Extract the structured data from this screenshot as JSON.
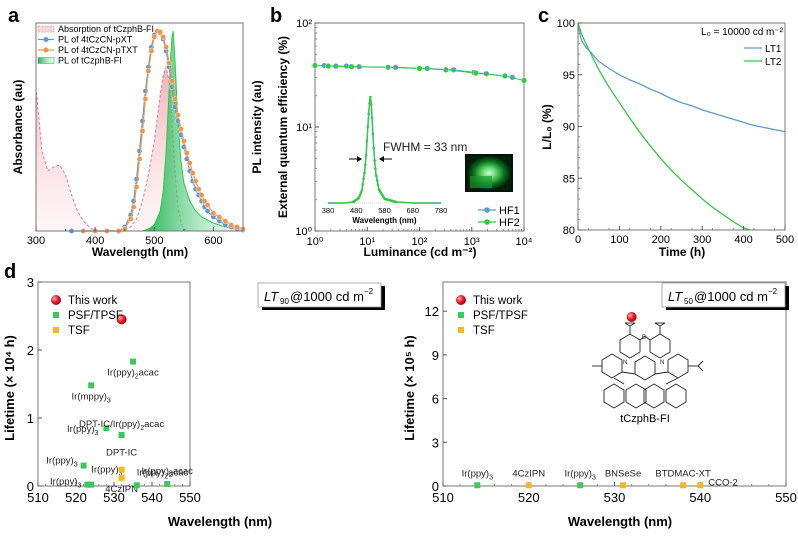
{
  "chart_data": [
    {
      "panel": "a",
      "type": "line",
      "xlabel": "Wavelength (nm)",
      "ylabel_left": "Absorbance (au)",
      "ylabel_right": "PL intensity (au)",
      "xlim": [
        300,
        650
      ],
      "ylim": [
        0,
        1
      ],
      "xticks": [
        "300",
        "400",
        "500",
        "600"
      ],
      "legend": "top-left",
      "series": [
        {
          "name": "Absorption of tCzphB-FI",
          "style": "dashed-fill",
          "color": "#e8a0a8",
          "x": [
            300,
            310,
            320,
            330,
            340,
            350,
            360,
            370,
            380,
            390,
            400,
            420,
            440,
            460,
            470,
            480,
            490,
            500,
            510,
            515,
            520,
            525,
            530,
            535,
            540,
            545,
            550,
            560,
            600,
            650
          ],
          "y": [
            0.72,
            0.4,
            0.3,
            0.32,
            0.33,
            0.28,
            0.18,
            0.1,
            0.05,
            0.02,
            0.0,
            0.0,
            0.0,
            0.02,
            0.06,
            0.15,
            0.28,
            0.45,
            0.68,
            0.78,
            0.82,
            0.75,
            0.55,
            0.3,
            0.12,
            0.04,
            0.01,
            0.0,
            0.0,
            0.0
          ]
        },
        {
          "name": "PL of 4tCzCN-pXT",
          "style": "line-circle",
          "color": "#5b9bd5",
          "x": [
            360,
            380,
            400,
            420,
            440,
            450,
            460,
            465,
            470,
            475,
            480,
            485,
            490,
            495,
            500,
            505,
            510,
            515,
            520,
            525,
            530,
            535,
            540,
            545,
            550,
            555,
            560,
            565,
            570,
            575,
            580,
            585,
            590,
            600,
            610,
            620,
            630,
            640,
            650
          ],
          "y": [
            0.0,
            0.0,
            0.0,
            0.0,
            0.0,
            0.02,
            0.08,
            0.15,
            0.26,
            0.4,
            0.55,
            0.7,
            0.82,
            0.92,
            0.98,
            1.0,
            0.99,
            0.96,
            0.9,
            0.82,
            0.72,
            0.62,
            0.55,
            0.48,
            0.42,
            0.36,
            0.3,
            0.25,
            0.21,
            0.18,
            0.15,
            0.12,
            0.1,
            0.07,
            0.05,
            0.03,
            0.02,
            0.01,
            0.005
          ]
        },
        {
          "name": "PL of 4tCzCN-pTXT",
          "style": "line-circle",
          "color": "#f0954a",
          "x": [
            380,
            400,
            420,
            440,
            450,
            460,
            465,
            470,
            475,
            480,
            485,
            490,
            495,
            500,
            505,
            510,
            515,
            520,
            525,
            530,
            535,
            540,
            545,
            550,
            555,
            560,
            565,
            570,
            575,
            580,
            585,
            590,
            600,
            610,
            620,
            630,
            640,
            650
          ],
          "y": [
            0.0,
            0.0,
            0.0,
            0.0,
            0.01,
            0.06,
            0.12,
            0.22,
            0.36,
            0.5,
            0.66,
            0.8,
            0.9,
            0.97,
            1.0,
            0.995,
            0.97,
            0.92,
            0.84,
            0.75,
            0.66,
            0.58,
            0.51,
            0.45,
            0.39,
            0.34,
            0.29,
            0.25,
            0.21,
            0.18,
            0.15,
            0.13,
            0.09,
            0.07,
            0.05,
            0.03,
            0.02,
            0.01
          ]
        },
        {
          "name": "PL of tCzphB-FI",
          "style": "fill",
          "color": "#2ecc40",
          "x": [
            480,
            490,
            500,
            510,
            515,
            520,
            525,
            528,
            530,
            532,
            535,
            540,
            545,
            550,
            560,
            570,
            580,
            600,
            620,
            650
          ],
          "y": [
            0.0,
            0.01,
            0.03,
            0.1,
            0.2,
            0.4,
            0.7,
            0.88,
            0.97,
            1.0,
            0.85,
            0.55,
            0.35,
            0.24,
            0.15,
            0.1,
            0.07,
            0.04,
            0.02,
            0.005
          ]
        }
      ]
    },
    {
      "panel": "b",
      "type": "scatter",
      "xlabel": "Luminance (cd m⁻²)",
      "ylabel": "External quantum efficiency (%)",
      "xscale": "log",
      "yscale": "log",
      "xlim": [
        1,
        10000
      ],
      "ylim": [
        1,
        100
      ],
      "xticks": [
        "10⁰",
        "10¹",
        "10²",
        "10³",
        "10⁴"
      ],
      "yticks": [
        "10⁰",
        "10¹",
        "10²"
      ],
      "legend": "bottom-right",
      "series": [
        {
          "name": "HF1",
          "color": "#5b9bd5",
          "x": [
            1.5,
            2.5,
            4,
            7,
            35,
            140,
            450,
            1100,
            1900,
            6000
          ],
          "y": [
            39,
            38.5,
            38.5,
            38,
            37.5,
            36.5,
            35.5,
            33.5,
            32.5,
            30
          ]
        },
        {
          "name": "HF2",
          "color": "#2ecc40",
          "x": [
            1,
            1.8,
            5,
            25,
            100,
            320,
            1200,
            4300,
            10000
          ],
          "y": [
            39,
            38.5,
            38,
            37.5,
            36.5,
            35.5,
            33,
            31,
            28
          ]
        }
      ],
      "inset": {
        "xlabel": "Wavelength (nm)",
        "xticks": [
          "380",
          "480",
          "580",
          "680",
          "780"
        ],
        "xlim": [
          380,
          780
        ],
        "annotation": "FWHM = 33 nm",
        "peak_nm": 530,
        "x": [
          380,
          440,
          470,
          490,
          500,
          510,
          515,
          520,
          525,
          528,
          530,
          532,
          535,
          540,
          545,
          550,
          560,
          580,
          620,
          680,
          780
        ],
        "y": [
          0,
          0,
          0.01,
          0.05,
          0.12,
          0.3,
          0.45,
          0.68,
          0.88,
          0.97,
          1.0,
          0.97,
          0.85,
          0.6,
          0.4,
          0.27,
          0.13,
          0.04,
          0.01,
          0,
          0
        ]
      }
    },
    {
      "panel": "c",
      "type": "line",
      "xlabel": "Time (h)",
      "ylabel": "L/L₀ (%)",
      "xlim": [
        0,
        500
      ],
      "ylim": [
        80,
        100
      ],
      "xticks": [
        "0",
        "100",
        "200",
        "300",
        "400",
        "500"
      ],
      "yticks": [
        "80",
        "85",
        "90",
        "95",
        "100"
      ],
      "annotation": "L₀ = 10000 cd m⁻²",
      "legend": "top-right",
      "series": [
        {
          "name": "LT1",
          "color": "#5b9bd5",
          "x": [
            0,
            5,
            10,
            20,
            30,
            50,
            75,
            100,
            125,
            150,
            160,
            175,
            200,
            225,
            250,
            275,
            300,
            325,
            350,
            375,
            400,
            425,
            450,
            475,
            500
          ],
          "y": [
            100,
            98.8,
            98.2,
            97.6,
            97.2,
            96.3,
            95.6,
            95.0,
            94.5,
            94.1,
            93.9,
            93.6,
            93.2,
            92.7,
            92.3,
            92.0,
            91.6,
            91.3,
            91.0,
            90.7,
            90.4,
            90.1,
            89.9,
            89.7,
            89.5
          ]
        },
        {
          "name": "LT2",
          "color": "#2ecc40",
          "x": [
            0,
            10,
            25,
            50,
            75,
            100,
            125,
            150,
            175,
            200,
            225,
            250,
            275,
            300,
            325,
            350,
            375,
            400,
            415
          ],
          "y": [
            100,
            98.8,
            97.5,
            95.5,
            93.8,
            92.3,
            90.8,
            89.4,
            88.1,
            86.9,
            85.8,
            84.8,
            83.9,
            83.0,
            82.2,
            81.5,
            80.8,
            80.2,
            80.0
          ]
        }
      ]
    },
    {
      "panel": "d-left",
      "type": "scatter",
      "title": "LT90@1000 cd m⁻²",
      "xlabel": "Wavelength (nm)",
      "ylabel": "Lifetime (× 10⁴ h)",
      "xlim": [
        510,
        550
      ],
      "ylim": [
        0,
        3
      ],
      "xticks": [
        "510",
        "520",
        "530",
        "540",
        "550"
      ],
      "yticks": [
        "0",
        "1",
        "2",
        "3"
      ],
      "legend": "top-left",
      "legend_entries": [
        {
          "name": "This work",
          "color": "#e8202a",
          "marker": "circle"
        },
        {
          "name": "PSF/TPSF",
          "color": "#3cc85a",
          "marker": "square"
        },
        {
          "name": "TSF",
          "color": "#f5b820",
          "marker": "square"
        }
      ],
      "points": [
        {
          "x": 532,
          "y": 2.45,
          "group": "This work",
          "label": ""
        },
        {
          "x": 524,
          "y": 1.48,
          "group": "PSF/TPSF",
          "label": "Ir(mppy)3"
        },
        {
          "x": 535,
          "y": 1.83,
          "group": "PSF/TPSF",
          "label": "Ir(ppy)2acac"
        },
        {
          "x": 528,
          "y": 0.85,
          "group": "PSF/TPSF",
          "label": "Ir(ppy)3"
        },
        {
          "x": 532,
          "y": 0.75,
          "group": "PSF/TPSF",
          "label": "DPT-IC/Ir(ppy)2acac"
        },
        {
          "x": 522,
          "y": 0.3,
          "group": "PSF/TPSF",
          "label": "Ir(ppy)3"
        },
        {
          "x": 523,
          "y": 0.02,
          "group": "PSF/TPSF",
          "label": "Ir(ppy)3"
        },
        {
          "x": 524,
          "y": 0.02,
          "group": "PSF/TPSF",
          "label": "Ir(ppy)3"
        },
        {
          "x": 532,
          "y": 0.24,
          "group": "TSF",
          "label": "DPT-IC"
        },
        {
          "x": 532,
          "y": 0.12,
          "group": "TSF",
          "label": "4CzIPN"
        },
        {
          "x": 536,
          "y": 0.01,
          "group": "PSF/TPSF",
          "label": "Ir(ppy)2acac"
        },
        {
          "x": 544,
          "y": 0.03,
          "group": "PSF/TPSF",
          "label": "Ir(ppy)2acac"
        }
      ]
    },
    {
      "panel": "d-right",
      "type": "scatter",
      "title": "LT50@1000 cd m⁻²",
      "xlabel": "Wavelength (nm)",
      "ylabel": "Lifetime (× 10⁵ h)",
      "xlim": [
        510,
        550
      ],
      "ylim": [
        0,
        14
      ],
      "xticks": [
        "510",
        "520",
        "530",
        "540",
        "550"
      ],
      "yticks": [
        "0",
        "3",
        "6",
        "9",
        "12"
      ],
      "legend": "top-left",
      "legend_entries": [
        {
          "name": "This work",
          "color": "#e8202a",
          "marker": "circle"
        },
        {
          "name": "PSF/TPSF",
          "color": "#3cc85a",
          "marker": "square"
        },
        {
          "name": "TSF",
          "color": "#f5b820",
          "marker": "square"
        }
      ],
      "structure_label": "tCzphB-FI",
      "points": [
        {
          "x": 532,
          "y": 11.6,
          "group": "This work",
          "label": ""
        },
        {
          "x": 514,
          "y": 0.05,
          "group": "PSF/TPSF",
          "label": "Ir(ppy)3"
        },
        {
          "x": 520,
          "y": 0.05,
          "group": "TSF",
          "label": "4CzIPN"
        },
        {
          "x": 526,
          "y": 0.05,
          "group": "PSF/TPSF",
          "label": "Ir(ppy)3"
        },
        {
          "x": 531,
          "y": 0.05,
          "group": "TSF",
          "label": "BNSeSe"
        },
        {
          "x": 538,
          "y": 0.05,
          "group": "TSF",
          "label": "BTDMAC-XT"
        },
        {
          "x": 540,
          "y": 0.05,
          "group": "TSF",
          "label": "CCO-2"
        }
      ]
    }
  ],
  "panel_labels": [
    "a",
    "b",
    "c",
    "d"
  ]
}
